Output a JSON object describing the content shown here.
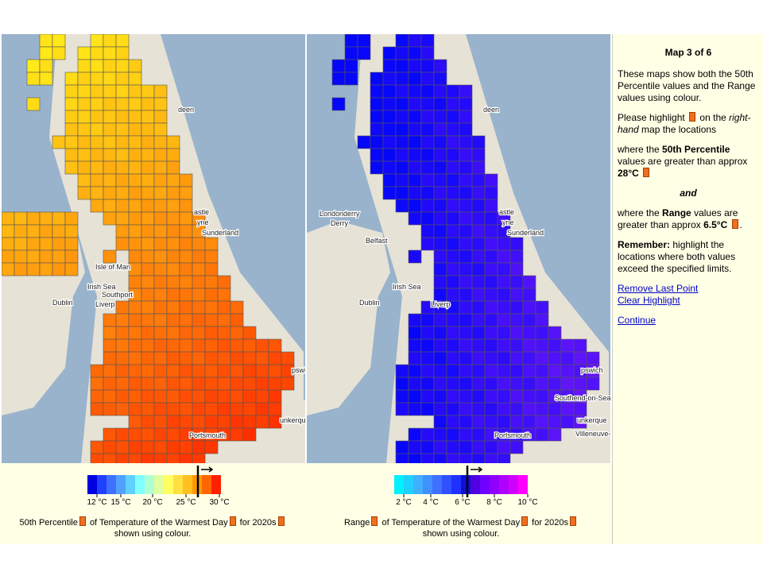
{
  "sidebar": {
    "heading": "Map 3 of 6",
    "p1": "These maps show both the 50th Percentile values and the Range values using colour.",
    "p2": [
      "Please highlight",
      "on the",
      "right-hand",
      "map the locations"
    ],
    "p3": [
      "where the",
      "50th Percentile",
      "values are greater than approx",
      "28°C"
    ],
    "and": "and",
    "p4": [
      "where the",
      "Range",
      "values are greater than approx",
      "6.5°C",
      "."
    ],
    "p5": [
      "Remember:",
      "highlight the locations where both values exceed the specified limits."
    ],
    "links": [
      "Remove Last Point",
      "Clear Highlight",
      "Continue"
    ]
  },
  "maps": [
    {
      "labels": [
        "deen",
        "astle",
        "yne",
        "Sunderland",
        "Isle of Man",
        "Irish Sea",
        "Dublin",
        "Southport",
        "Liverp",
        "pswich",
        "Portsmouth",
        "unkerque"
      ]
    },
    {
      "labels": [
        "deen",
        "astle",
        "yne",
        "Sunderland",
        "Londonderry",
        "Derry",
        "Belfast",
        "Irish Sea",
        "Dublin",
        "Liverp",
        "pswich",
        "Southend-on-Sea",
        "unkerque",
        "Villeneuve-d",
        "Portsmouth"
      ]
    }
  ],
  "legends": [
    {
      "colors": [
        "#0000e0",
        "#2040ff",
        "#4070ff",
        "#50a0ff",
        "#60d0ff",
        "#80ffff",
        "#b0ffd0",
        "#e0ffa0",
        "#ffff60",
        "#ffe040",
        "#ffc020",
        "#ff9900",
        "#ff6600",
        "#ff2000"
      ],
      "ticks": [
        "12 °C",
        "15 °C",
        "20 °C",
        "25 °C",
        "30 °C"
      ],
      "caption": [
        "50th Percentile",
        "of Temperature of the Warmest Day",
        "for 2020s",
        "shown using colour."
      ]
    },
    {
      "colors": [
        "#00f0ff",
        "#20d0ff",
        "#40b0ff",
        "#4090ff",
        "#4070ff",
        "#3050ff",
        "#2030ff",
        "#1010d0",
        "#5000e0",
        "#7000ff",
        "#9000ff",
        "#b000ff",
        "#d000ff",
        "#ff00ff"
      ],
      "ticks": [
        "2 °C",
        "4 °C",
        "6 °C",
        "8 °C",
        "10 °C"
      ],
      "caption": [
        "Range",
        "of Temperature of the Warmest Day",
        "for 2020s",
        "shown using colour."
      ]
    }
  ]
}
